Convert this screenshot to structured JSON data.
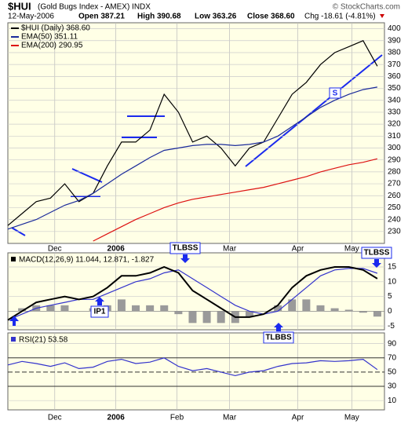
{
  "header": {
    "symbol": "$HUI",
    "name": "(Gold Bugs Index - AMEX) INDX",
    "credit": "© StockCharts.com",
    "date": "12-May-2006",
    "quote": [
      "Open 387.21",
      "High 390.68",
      "Low 363.26",
      "Close 368.60",
      "Chg -18.61 (-4.81%)"
    ]
  },
  "chart_data": [
    {
      "type": "line",
      "name": "price",
      "x": [
        0,
        1,
        2,
        3,
        4,
        5,
        6,
        7,
        8,
        9,
        10,
        11,
        12,
        13,
        14,
        15,
        16,
        17,
        18,
        19,
        20,
        21,
        22,
        23,
        24,
        25,
        26
      ],
      "xlim": [
        0,
        26.5
      ],
      "xticks": [
        {
          "value": 3.3,
          "label": "Dec"
        },
        {
          "value": 7.6,
          "label": "2006"
        },
        {
          "value": 11.9,
          "label": "Feb"
        },
        {
          "value": 15.6,
          "label": "Mar"
        },
        {
          "value": 20.4,
          "label": "Apr"
        },
        {
          "value": 24.2,
          "label": "May"
        }
      ],
      "ylim": [
        220,
        405
      ],
      "yticks": [
        230,
        240,
        250,
        260,
        270,
        280,
        290,
        300,
        310,
        320,
        330,
        340,
        350,
        360,
        370,
        380,
        390,
        400
      ],
      "series": [
        {
          "name": "$HUI (Daily) 368.60",
          "color": "#000000",
          "values": [
            235,
            245,
            255,
            258,
            270,
            255,
            262,
            285,
            305,
            305,
            315,
            345,
            330,
            305,
            310,
            300,
            285,
            300,
            305,
            325,
            345,
            355,
            370,
            380,
            385,
            390,
            368.6
          ]
        },
        {
          "name": "EMA(50) 351.11",
          "color": "#1a2a9a",
          "values": [
            232,
            236,
            240,
            246,
            252,
            256,
            262,
            270,
            278,
            285,
            292,
            298,
            300,
            302,
            303,
            303,
            302,
            303,
            305,
            310,
            318,
            326,
            334,
            340,
            345,
            349,
            351.11
          ]
        },
        {
          "name": "EMA(200) 290.95",
          "color": "#dd1111",
          "values": [
            null,
            null,
            null,
            null,
            null,
            null,
            222,
            228,
            234,
            240,
            245,
            250,
            254,
            257,
            259,
            261,
            263,
            265,
            267,
            270,
            273,
            276,
            280,
            283,
            286,
            288,
            290.95
          ]
        }
      ],
      "annotations": [
        "S"
      ],
      "grid": true
    },
    {
      "type": "macd",
      "name": "MACD(12,26,9) 11.044, 12.871, -1.827",
      "ylim": [
        -6.3,
        19.8
      ],
      "yticks": [
        15,
        10,
        5,
        0,
        -5
      ],
      "series": [
        {
          "name": "MACD",
          "color": "#000000",
          "values": [
            -3,
            0,
            3,
            4,
            5,
            4,
            5,
            8,
            12,
            12,
            13,
            15,
            13,
            7,
            4,
            1,
            -2,
            -2,
            -1,
            2,
            8,
            12,
            14,
            15,
            15,
            14,
            11.044
          ]
        },
        {
          "name": "Signal",
          "color": "#3333cc",
          "values": [
            -3,
            -1,
            1,
            2,
            3,
            4,
            4,
            6,
            8,
            10,
            11,
            13,
            14,
            11,
            8,
            5,
            2,
            0,
            -1,
            0,
            4,
            8,
            12,
            14,
            14.5,
            14.5,
            12.871
          ]
        },
        {
          "name": "Histogram",
          "color": "#9a9a9a",
          "values": [
            0,
            1,
            2,
            2,
            2,
            0,
            1,
            2,
            4,
            2,
            2,
            2,
            -1,
            -4,
            -4,
            -4,
            -4,
            -2,
            0,
            2,
            4,
            4,
            2,
            1,
            0.5,
            -0.5,
            -1.827
          ]
        }
      ],
      "annotations": [
        "TLBSS",
        "IP1",
        "TLBBS",
        "TLBSS"
      ]
    },
    {
      "type": "rsi",
      "name": "RSI(21) 53.58",
      "ylim": [
        -3,
        105
      ],
      "yticks": [
        90,
        70,
        50,
        30,
        10
      ],
      "series": [
        {
          "name": "RSI",
          "color": "#3333cc",
          "values": [
            60,
            65,
            62,
            58,
            63,
            55,
            57,
            65,
            68,
            62,
            64,
            70,
            58,
            52,
            55,
            50,
            45,
            50,
            52,
            58,
            62,
            63,
            66,
            65,
            66,
            68,
            53.58
          ]
        }
      ]
    }
  ]
}
